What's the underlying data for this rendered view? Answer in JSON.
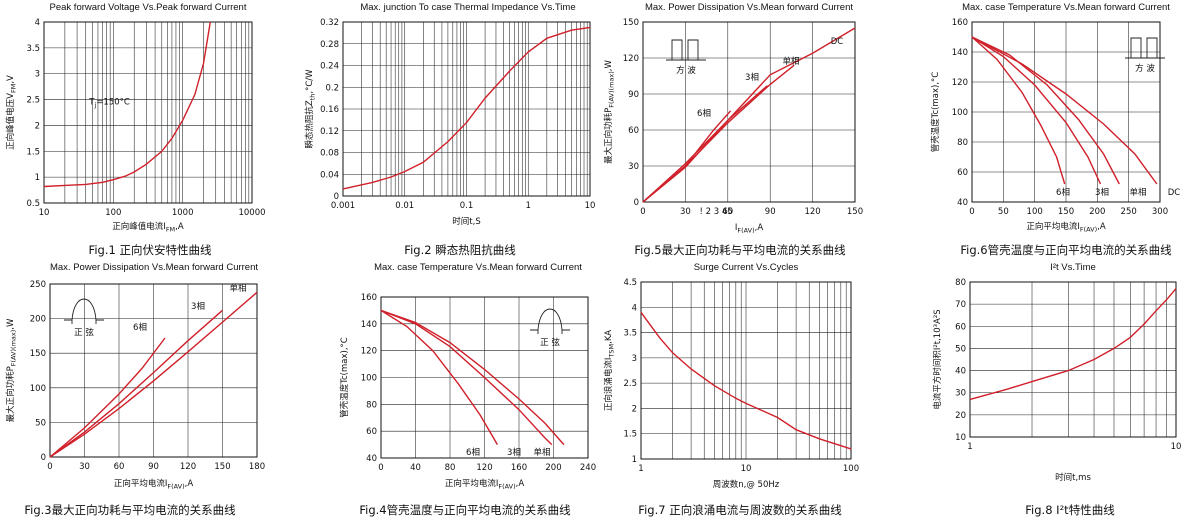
{
  "chart_data": [
    {
      "id": "fig1",
      "type": "line",
      "title": "Peak forward Voltage Vs.Peak forward Current",
      "caption": "Fig.1 正向伏安特性曲线",
      "xlabel": "正向峰值电流I_FM,A",
      "ylabel": "正向峰值电压V_FM,V",
      "xscale": "log",
      "xlim": [
        10,
        10000
      ],
      "ylim": [
        0.5,
        4
      ],
      "xticks": [
        10,
        100,
        1000,
        10000
      ],
      "xtick_labels": [
        "10",
        "100",
        "1000",
        "10000"
      ],
      "yticks": [
        0.5,
        1,
        1.5,
        2,
        2.5,
        3,
        3.5,
        4
      ],
      "ytick_labels": [
        "0.5",
        "1",
        "1.5",
        "2",
        "2.5",
        "3",
        "3.5",
        "4"
      ],
      "grid": true,
      "annotations": [
        {
          "text": "Tj=150°C",
          "x": 45,
          "y": 2.4
        }
      ],
      "series": [
        {
          "points": [
            [
              10,
              0.82
            ],
            [
              20,
              0.84
            ],
            [
              40,
              0.86
            ],
            [
              70,
              0.9
            ],
            [
              100,
              0.95
            ],
            [
              150,
              1.02
            ],
            [
              200,
              1.1
            ],
            [
              300,
              1.25
            ],
            [
              500,
              1.5
            ],
            [
              700,
              1.75
            ],
            [
              1000,
              2.1
            ],
            [
              1500,
              2.6
            ],
            [
              2000,
              3.2
            ],
            [
              2500,
              4.0
            ]
          ]
        }
      ]
    },
    {
      "id": "fig2",
      "type": "line",
      "title": "Max. junction To case Thermal Impedance Vs.Time",
      "caption": "Fig.2 瞬态热阻抗曲线",
      "xlabel": "时间t,S",
      "ylabel": "瞬态热阻抗Z_th,°C/W",
      "xscale": "log",
      "xlim": [
        0.001,
        10
      ],
      "ylim": [
        0,
        0.32
      ],
      "xticks": [
        0.001,
        0.01,
        0.1,
        1,
        10
      ],
      "xtick_labels": [
        "0.001",
        "0.01",
        "0.1",
        "1",
        "10"
      ],
      "yticks": [
        0,
        0.04,
        0.08,
        0.12,
        0.16,
        0.2,
        0.24,
        0.28,
        0.32
      ],
      "ytick_labels": [
        "0",
        "0.04",
        "0.08",
        "0.12",
        "0.16",
        "0.2",
        "0.24",
        "0.28",
        "0.32"
      ],
      "grid": true,
      "series": [
        {
          "points": [
            [
              0.001,
              0.013
            ],
            [
              0.003,
              0.025
            ],
            [
              0.006,
              0.035
            ],
            [
              0.01,
              0.045
            ],
            [
              0.02,
              0.062
            ],
            [
              0.05,
              0.1
            ],
            [
              0.1,
              0.135
            ],
            [
              0.2,
              0.18
            ],
            [
              0.5,
              0.23
            ],
            [
              1,
              0.265
            ],
            [
              2,
              0.29
            ],
            [
              5,
              0.305
            ],
            [
              10,
              0.31
            ]
          ]
        }
      ]
    },
    {
      "id": "fig5",
      "type": "line",
      "title": "Max. Power Dissipation Vs.Mean forward Current",
      "caption": "Fig.5最大正向功耗与平均电流的关系曲线",
      "xlabel": "I_F(AV),A",
      "ylabel": "最大正向功耗P_F(AV)(max),W",
      "xlim": [
        0,
        150
      ],
      "ylim": [
        0,
        150
      ],
      "xticks": [
        0,
        30,
        60,
        90,
        120,
        150
      ],
      "xtick_labels": [
        "0",
        "30",
        "60",
        "90",
        "120",
        "150"
      ],
      "yticks": [
        0,
        30,
        60,
        90,
        120,
        150
      ],
      "ytick_labels": [
        "0",
        "30",
        "60",
        "90",
        "120",
        "150"
      ],
      "extra_xtick_text": "! 2 3 45",
      "grid": true,
      "icon": {
        "type": "square-wave",
        "label": "方 波"
      },
      "series": [
        {
          "name": "DC",
          "points": [
            [
              0,
              0
            ],
            [
              30,
              32
            ],
            [
              60,
              68
            ],
            [
              90,
              106
            ],
            [
              120,
              124
            ],
            [
              150,
              145
            ]
          ]
        },
        {
          "name": "单相",
          "points": [
            [
              0,
              0
            ],
            [
              30,
              30
            ],
            [
              60,
              66
            ],
            [
              90,
              98
            ],
            [
              107,
              114
            ]
          ]
        },
        {
          "name": "3相",
          "points": [
            [
              0,
              0
            ],
            [
              30,
              29
            ],
            [
              60,
              68
            ],
            [
              88,
              97
            ]
          ]
        },
        {
          "name": "6相",
          "points": [
            [
              0,
              0
            ],
            [
              30,
              30
            ],
            [
              50,
              60
            ],
            [
              62,
              76
            ]
          ]
        }
      ]
    },
    {
      "id": "fig6",
      "type": "line",
      "title": "Max. case Temperature Vs.Mean forward Current",
      "caption": "Fig.6管壳温度与正向平均电流的关系曲线",
      "xlabel": "正向平均电流I_F(AV),A",
      "ylabel": "管壳温度Tc(max),°C",
      "xlim": [
        0,
        300
      ],
      "ylim": [
        40,
        160
      ],
      "xticks": [
        0,
        50,
        100,
        150,
        200,
        250,
        300
      ],
      "xtick_labels": [
        "0",
        "50",
        "100",
        "150",
        "200",
        "250",
        "300"
      ],
      "yticks": [
        40,
        60,
        80,
        100,
        120,
        140,
        160
      ],
      "ytick_labels": [
        "40",
        "60",
        "80",
        "100",
        "120",
        "140",
        "160"
      ],
      "grid": true,
      "icon": {
        "type": "square-wave",
        "label": "方 波"
      },
      "series": [
        {
          "name": "6相",
          "points": [
            [
              0,
              150
            ],
            [
              40,
              135
            ],
            [
              80,
              113
            ],
            [
              110,
              91
            ],
            [
              135,
              70
            ],
            [
              148,
              52
            ]
          ]
        },
        {
          "name": "3相",
          "points": [
            [
              0,
              150
            ],
            [
              50,
              137
            ],
            [
              100,
              118
            ],
            [
              150,
              93
            ],
            [
              185,
              70
            ],
            [
              205,
              52
            ]
          ]
        },
        {
          "name": "单相",
          "points": [
            [
              0,
              150
            ],
            [
              60,
              138
            ],
            [
              120,
              118
            ],
            [
              170,
              95
            ],
            [
              210,
              72
            ],
            [
              235,
              52
            ]
          ]
        },
        {
          "name": "DC",
          "points": [
            [
              0,
              150
            ],
            [
              80,
              132
            ],
            [
              150,
              112
            ],
            [
              210,
              92
            ],
            [
              260,
              72
            ],
            [
              295,
              52
            ]
          ]
        }
      ]
    },
    {
      "id": "fig3",
      "type": "line",
      "title": "Max. Power Dissipation Vs.Mean forward Current",
      "caption": "Fig.3最大正向功耗与平均电流的关系曲线",
      "xlabel": "正向平均电流I_F(AV),A",
      "ylabel": "最大正向功耗P_F(AV)(max),W",
      "xlim": [
        0,
        180
      ],
      "ylim": [
        0,
        250
      ],
      "xticks": [
        0,
        30,
        60,
        90,
        120,
        150,
        180
      ],
      "xtick_labels": [
        "0",
        "30",
        "60",
        "90",
        "120",
        "150",
        "180"
      ],
      "yticks": [
        0,
        50,
        100,
        150,
        200,
        250
      ],
      "ytick_labels": [
        "0",
        "50",
        "100",
        "150",
        "200",
        "250"
      ],
      "grid": true,
      "icon": {
        "type": "half-sine",
        "label": "正 弦"
      },
      "series": [
        {
          "name": "单相",
          "points": [
            [
              0,
              0
            ],
            [
              30,
              33
            ],
            [
              60,
              70
            ],
            [
              90,
              110
            ],
            [
              120,
              152
            ],
            [
              150,
              195
            ],
            [
              180,
              238
            ]
          ]
        },
        {
          "name": "3相",
          "points": [
            [
              0,
              0
            ],
            [
              30,
              36
            ],
            [
              60,
              77
            ],
            [
              90,
              122
            ],
            [
              120,
              168
            ],
            [
              150,
              212
            ]
          ]
        },
        {
          "name": "6相",
          "points": [
            [
              0,
              0
            ],
            [
              30,
              42
            ],
            [
              60,
              91
            ],
            [
              80,
              128
            ],
            [
              100,
              172
            ]
          ]
        }
      ]
    },
    {
      "id": "fig4",
      "type": "line",
      "title": "Max. case Temperature Vs.Mean forward Current",
      "caption": "Fig.4管壳温度与正向平均电流的关系曲线",
      "xlabel": "正向平均电流I_F(AV),A",
      "ylabel": "管壳温度Tc(max),°C",
      "xlim": [
        0,
        240
      ],
      "ylim": [
        40,
        160
      ],
      "xticks": [
        0,
        40,
        80,
        120,
        160,
        200,
        240
      ],
      "xtick_labels": [
        "0",
        "40",
        "80",
        "120",
        "160",
        "200",
        "240"
      ],
      "yticks": [
        40,
        60,
        80,
        100,
        120,
        140,
        160
      ],
      "ytick_labels": [
        "40",
        "60",
        "80",
        "100",
        "120",
        "140",
        "160"
      ],
      "grid": true,
      "icon": {
        "type": "half-sine",
        "label": "正 弦"
      },
      "series": [
        {
          "name": "6相",
          "points": [
            [
              0,
              150
            ],
            [
              30,
              138
            ],
            [
              60,
              120
            ],
            [
              90,
              95
            ],
            [
              115,
              72
            ],
            [
              135,
              50
            ]
          ]
        },
        {
          "name": "3相",
          "points": [
            [
              0,
              150
            ],
            [
              40,
              140
            ],
            [
              80,
              123
            ],
            [
              120,
              100
            ],
            [
              160,
              76
            ],
            [
              190,
              55
            ],
            [
              198,
              50
            ]
          ]
        },
        {
          "name": "单相",
          "points": [
            [
              0,
              150
            ],
            [
              40,
              141
            ],
            [
              80,
              126
            ],
            [
              120,
              106
            ],
            [
              160,
              84
            ],
            [
              190,
              66
            ],
            [
              212,
              50
            ]
          ]
        }
      ]
    },
    {
      "id": "fig7",
      "type": "line",
      "title": "Surge Current Vs.Cycles",
      "caption": "Fig.7 正向浪涌电流与周波数的关系曲线",
      "xlabel": "周波数n,@ 50Hz",
      "ylabel": "正向浪涌电流I_TSM,KA",
      "xscale": "log",
      "xlim": [
        1,
        100
      ],
      "ylim": [
        1,
        4.5
      ],
      "xticks": [
        1,
        10,
        100
      ],
      "xtick_labels": [
        "1",
        "10",
        "100"
      ],
      "yticks": [
        1,
        1.5,
        2,
        2.5,
        3,
        3.5,
        4,
        4.5
      ],
      "ytick_labels": [
        "1",
        "1.5",
        "2",
        "2.5",
        "3",
        "3.5",
        "4",
        "4.5"
      ],
      "grid": true,
      "series": [
        {
          "points": [
            [
              1,
              3.9
            ],
            [
              1.5,
              3.4
            ],
            [
              2,
              3.1
            ],
            [
              3,
              2.78
            ],
            [
              5,
              2.45
            ],
            [
              8,
              2.2
            ],
            [
              10,
              2.1
            ],
            [
              20,
              1.82
            ],
            [
              30,
              1.58
            ],
            [
              50,
              1.4
            ],
            [
              100,
              1.2
            ]
          ]
        }
      ]
    },
    {
      "id": "fig8",
      "type": "line",
      "title": "I²t Vs.Time",
      "caption": "Fig.8 I²t特性曲线",
      "xlabel": "时间t,ms",
      "ylabel": "电流平方时间积I²t,10³A²S",
      "xscale": "log",
      "xlim": [
        1,
        10
      ],
      "ylim": [
        10,
        80
      ],
      "xticks": [
        1,
        10
      ],
      "xtick_labels": [
        "1",
        "10"
      ],
      "yticks": [
        10,
        20,
        30,
        40,
        50,
        60,
        70,
        80
      ],
      "ytick_labels": [
        "10",
        "20",
        "30",
        "40",
        "50",
        "60",
        "70",
        "80"
      ],
      "grid": true,
      "series": [
        {
          "points": [
            [
              1,
              27
            ],
            [
              1.5,
              31.5
            ],
            [
              2,
              35
            ],
            [
              3,
              40
            ],
            [
              4,
              45
            ],
            [
              5,
              50
            ],
            [
              6,
              55
            ],
            [
              7,
              61
            ],
            [
              8,
              67
            ],
            [
              9,
              72
            ],
            [
              10,
              77
            ]
          ]
        }
      ]
    }
  ]
}
